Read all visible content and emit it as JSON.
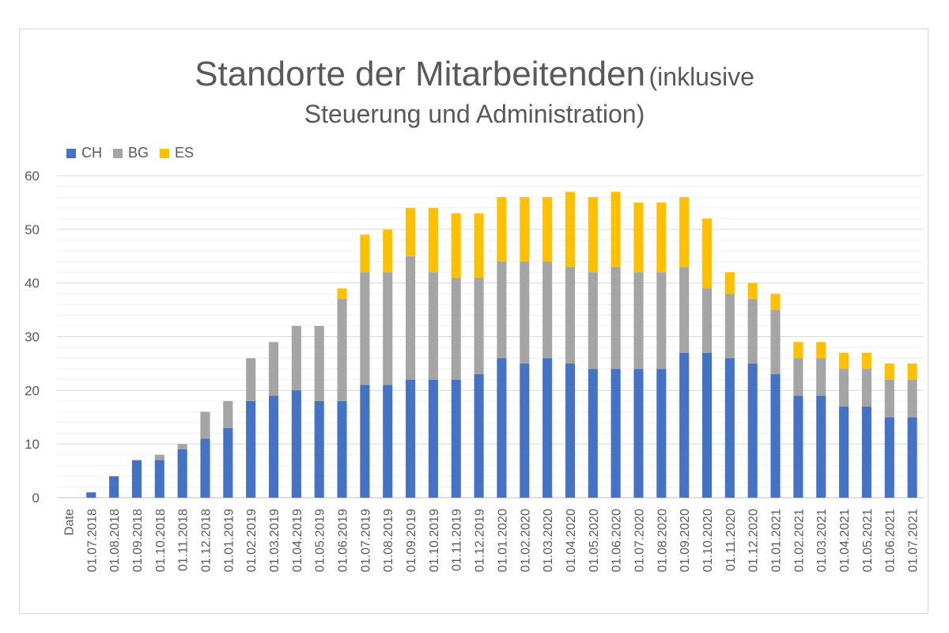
{
  "chart_data": {
    "type": "bar",
    "stacked": true,
    "title_main": "Standorte der Mitarbeitenden",
    "title_sub1": "(inklusive",
    "title_sub2": "Steuerung und Administration)",
    "legend_position": "top-left",
    "ylim": [
      0,
      60
    ],
    "yticks": [
      0,
      10,
      20,
      30,
      40,
      50,
      60
    ],
    "grid": true,
    "categories": [
      "Date",
      "01.07.2018",
      "01.08.2018",
      "01.09.2018",
      "01.10.2018",
      "01.11.2018",
      "01.12.2018",
      "01.01.2019",
      "01.02.2019",
      "01.03.2019",
      "01.04.2019",
      "01.05.2019",
      "01.06.2019",
      "01.07.2019",
      "01.08.2019",
      "01.09.2019",
      "01.10.2019",
      "01.11.2019",
      "01.12.2019",
      "01.01.2020",
      "01.02.2020",
      "01.03.2020",
      "01.04.2020",
      "01.05.2020",
      "01.06.2020",
      "01.07.2020",
      "01.08.2020",
      "01.09.2020",
      "01.10.2020",
      "01.11.2020",
      "01.12.2020",
      "01.01.2021",
      "01.02.2021",
      "01.03.2021",
      "01.04.2021",
      "01.05.2021",
      "01.06.2021",
      "01.07.2021"
    ],
    "series": [
      {
        "name": "CH",
        "color": "#4472C4",
        "values": [
          0,
          1,
          4,
          7,
          7,
          9,
          11,
          13,
          18,
          19,
          20,
          18,
          18,
          21,
          21,
          22,
          22,
          22,
          23,
          26,
          25,
          26,
          25,
          24,
          24,
          24,
          24,
          27,
          27,
          26,
          25,
          23,
          19,
          19,
          17,
          17,
          15,
          15
        ]
      },
      {
        "name": "BG",
        "color": "#A5A5A5",
        "values": [
          0,
          0,
          0,
          0,
          1,
          1,
          5,
          5,
          8,
          10,
          12,
          14,
          19,
          21,
          21,
          23,
          20,
          19,
          18,
          18,
          19,
          18,
          18,
          18,
          19,
          18,
          18,
          16,
          12,
          12,
          12,
          12,
          7,
          7,
          7,
          7,
          7,
          7
        ]
      },
      {
        "name": "ES",
        "color": "#FFC000",
        "values": [
          0,
          0,
          0,
          0,
          0,
          0,
          0,
          0,
          0,
          0,
          0,
          0,
          2,
          7,
          8,
          9,
          12,
          12,
          12,
          12,
          12,
          12,
          14,
          14,
          14,
          13,
          13,
          13,
          13,
          4,
          3,
          3,
          3,
          3,
          3,
          3,
          3,
          3
        ]
      }
    ]
  }
}
